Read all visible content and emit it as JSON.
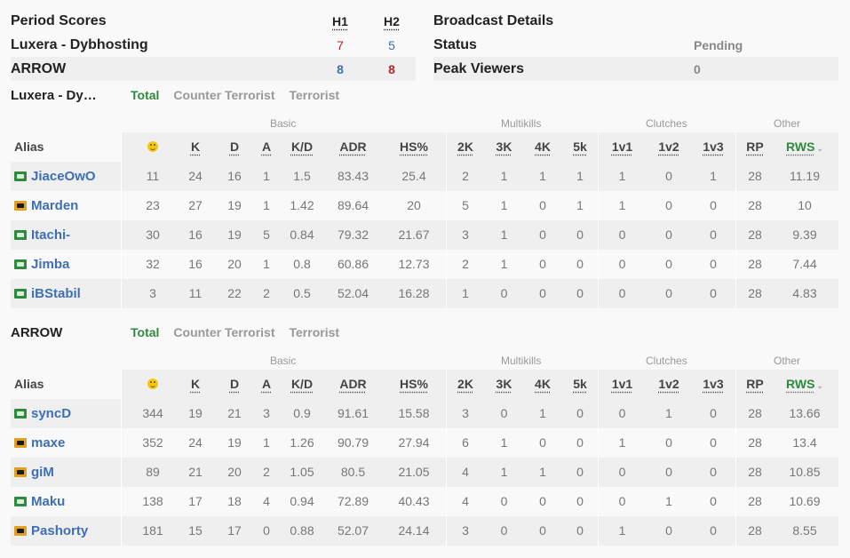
{
  "period_scores": {
    "title": "Period Scores",
    "h1_label": "H1",
    "h2_label": "H2",
    "teams": [
      {
        "name": "Luxera - Dybhosting",
        "h1": "7",
        "h2": "5"
      },
      {
        "name": "ARROW",
        "h1": "8",
        "h2": "8"
      }
    ]
  },
  "broadcast": {
    "title": "Broadcast Details",
    "rows": [
      {
        "label": "Status",
        "value": "Pending"
      },
      {
        "label": "Peak Viewers",
        "value": "0"
      }
    ]
  },
  "tabs": {
    "total": "Total",
    "ct": "Counter Terrorist",
    "t": "Terrorist"
  },
  "groups": {
    "basic": "Basic",
    "multikills": "Multikills",
    "clutches": "Clutches",
    "other": "Other"
  },
  "columns": {
    "alias": "Alias",
    "k": "K",
    "d": "D",
    "a": "A",
    "kd": "K/D",
    "adr": "ADR",
    "hs": "HS%",
    "k2": "2K",
    "k3": "3K",
    "k4": "4K",
    "k5": "5k",
    "v1": "1v1",
    "v2": "1v2",
    "v3": "1v3",
    "rp": "RP",
    "rws": "RWS"
  },
  "team1": {
    "name": "Luxera - Dy…",
    "players": [
      {
        "flag": "ct",
        "alias": "JiaceOwO",
        "smile": "11",
        "k": "24",
        "d": "16",
        "a": "1",
        "kd": "1.5",
        "adr": "83.43",
        "hs": "25.4",
        "k2": "2",
        "k3": "1",
        "k4": "1",
        "k5": "1",
        "v1": "1",
        "v2": "0",
        "v3": "1",
        "rp": "28",
        "rws": "11.19"
      },
      {
        "flag": "t",
        "alias": "Marden",
        "smile": "23",
        "k": "27",
        "d": "19",
        "a": "1",
        "kd": "1.42",
        "adr": "89.64",
        "hs": "20",
        "k2": "5",
        "k3": "1",
        "k4": "0",
        "k5": "1",
        "v1": "1",
        "v2": "0",
        "v3": "0",
        "rp": "28",
        "rws": "10"
      },
      {
        "flag": "ct",
        "alias": "Itachi-",
        "smile": "30",
        "k": "16",
        "d": "19",
        "a": "5",
        "kd": "0.84",
        "adr": "79.32",
        "hs": "21.67",
        "k2": "3",
        "k3": "1",
        "k4": "0",
        "k5": "0",
        "v1": "0",
        "v2": "0",
        "v3": "0",
        "rp": "28",
        "rws": "9.39"
      },
      {
        "flag": "ct",
        "alias": "Jimba",
        "smile": "32",
        "k": "16",
        "d": "20",
        "a": "1",
        "kd": "0.8",
        "adr": "60.86",
        "hs": "12.73",
        "k2": "2",
        "k3": "1",
        "k4": "0",
        "k5": "0",
        "v1": "0",
        "v2": "0",
        "v3": "0",
        "rp": "28",
        "rws": "7.44"
      },
      {
        "flag": "ct",
        "alias": "iBStabil",
        "smile": "3",
        "k": "11",
        "d": "22",
        "a": "2",
        "kd": "0.5",
        "adr": "52.04",
        "hs": "16.28",
        "k2": "1",
        "k3": "0",
        "k4": "0",
        "k5": "0",
        "v1": "0",
        "v2": "0",
        "v3": "0",
        "rp": "28",
        "rws": "4.83"
      }
    ]
  },
  "team2": {
    "name": "ARROW",
    "players": [
      {
        "flag": "ct",
        "alias": "syncD",
        "smile": "344",
        "k": "19",
        "d": "21",
        "a": "3",
        "kd": "0.9",
        "adr": "91.61",
        "hs": "15.58",
        "k2": "3",
        "k3": "0",
        "k4": "1",
        "k5": "0",
        "v1": "0",
        "v2": "1",
        "v3": "0",
        "rp": "28",
        "rws": "13.66"
      },
      {
        "flag": "t",
        "alias": "maxe",
        "smile": "352",
        "k": "24",
        "d": "19",
        "a": "1",
        "kd": "1.26",
        "adr": "90.79",
        "hs": "27.94",
        "k2": "6",
        "k3": "1",
        "k4": "0",
        "k5": "0",
        "v1": "1",
        "v2": "0",
        "v3": "0",
        "rp": "28",
        "rws": "13.4"
      },
      {
        "flag": "t",
        "alias": "giM",
        "smile": "89",
        "k": "21",
        "d": "20",
        "a": "2",
        "kd": "1.05",
        "adr": "80.5",
        "hs": "21.05",
        "k2": "4",
        "k3": "1",
        "k4": "1",
        "k5": "0",
        "v1": "0",
        "v2": "0",
        "v3": "0",
        "rp": "28",
        "rws": "10.85"
      },
      {
        "flag": "ct",
        "alias": "Maku",
        "smile": "138",
        "k": "17",
        "d": "18",
        "a": "4",
        "kd": "0.94",
        "adr": "72.89",
        "hs": "40.43",
        "k2": "4",
        "k3": "0",
        "k4": "0",
        "k5": "0",
        "v1": "0",
        "v2": "1",
        "v3": "0",
        "rp": "28",
        "rws": "10.69"
      },
      {
        "flag": "t",
        "alias": "Pashorty",
        "smile": "181",
        "k": "15",
        "d": "17",
        "a": "0",
        "kd": "0.88",
        "adr": "52.07",
        "hs": "24.14",
        "k2": "3",
        "k3": "0",
        "k4": "0",
        "k5": "0",
        "v1": "1",
        "v2": "0",
        "v3": "0",
        "rp": "28",
        "rws": "8.55"
      }
    ]
  },
  "colors": {
    "ct_flag": "#2e8b3d",
    "t_flag": "#e0a020",
    "link": "#3e6fb5",
    "active_tab": "#2e8b3d",
    "score_red": "#b5282c",
    "score_blue": "#3e6fb5"
  }
}
